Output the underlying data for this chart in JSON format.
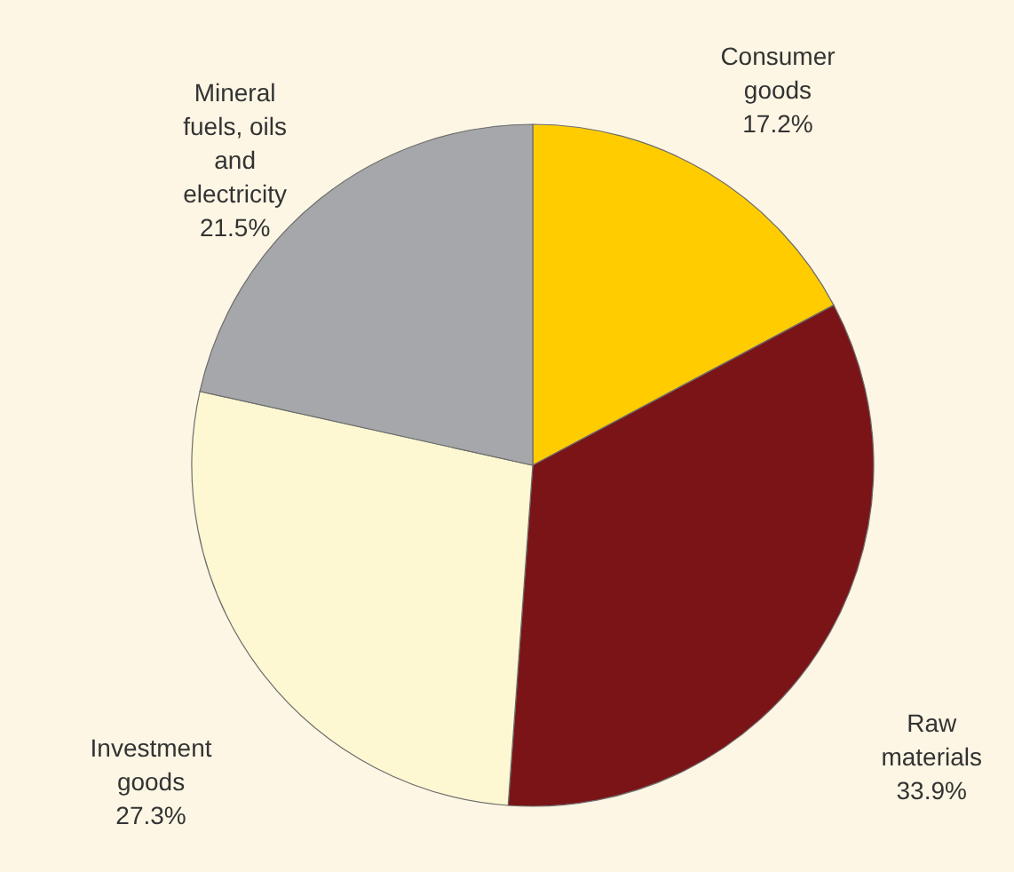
{
  "chart_data": {
    "type": "pie",
    "categories": [
      "Consumer goods",
      "Raw materials",
      "Investment goods",
      "Mineral fuels, oils and electricity"
    ],
    "values": [
      17.2,
      33.9,
      27.3,
      21.5
    ],
    "value_labels": [
      "17.2%",
      "33.9%",
      "27.3%",
      "21.5%"
    ],
    "colors": [
      "#ffcc00",
      "#7b1417",
      "#fdf8d2",
      "#a6a7aa"
    ]
  }
}
